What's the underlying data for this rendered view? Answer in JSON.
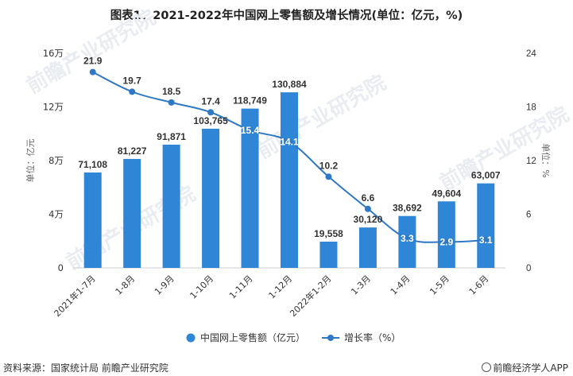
{
  "title": "图表1：2021-2022年中国网上零售额及增长情况(单位：亿元，%)",
  "source": "资料来源：国家统计局 前瞻产业研究院",
  "brand": "前瞻经济学人APP",
  "watermark": "前瞻产业研究院",
  "colors": {
    "bar": "#2f86d6",
    "line": "#2f78c4",
    "text": "#333333",
    "axis": "#cccccc"
  },
  "chart_data": {
    "type": "bar",
    "categories": [
      "2021年1-7月",
      "1-8月",
      "1-9月",
      "1-10月",
      "1-11月",
      "1-12月",
      "2022年1-2月",
      "1-3月",
      "1-4月",
      "1-5月",
      "1-6月"
    ],
    "series": [
      {
        "name": "中国网上零售额（亿元）",
        "type": "bar",
        "axis": "left",
        "values": [
          71108,
          81227,
          91871,
          103765,
          118749,
          130884,
          19558,
          30120,
          38692,
          49604,
          63007
        ],
        "labels": [
          "71,108",
          "81,227",
          "91,871",
          "103,765",
          "118,749",
          "130,884",
          "19,558",
          "30,120",
          "38,692",
          "49,604",
          "63,007"
        ]
      },
      {
        "name": "增长率（%）",
        "type": "line",
        "axis": "right",
        "values": [
          21.9,
          19.7,
          18.5,
          17.4,
          15.4,
          14.1,
          10.2,
          6.6,
          3.3,
          2.9,
          3.1
        ]
      }
    ],
    "ylabel_left": "单位：亿元",
    "ylabel_right": "单位：%",
    "ylim_left": [
      0,
      160000
    ],
    "ylim_right": [
      0,
      24
    ],
    "yticks_left": [
      {
        "value": 0,
        "label": "0"
      },
      {
        "value": 40000,
        "label": "4万"
      },
      {
        "value": 80000,
        "label": "8万"
      },
      {
        "value": 120000,
        "label": "12万"
      },
      {
        "value": 160000,
        "label": "16万"
      }
    ],
    "yticks_right": [
      {
        "value": 0,
        "label": "0"
      },
      {
        "value": 6,
        "label": "6"
      },
      {
        "value": 12,
        "label": "12"
      },
      {
        "value": 18,
        "label": "18"
      },
      {
        "value": 24,
        "label": "24"
      }
    ],
    "legend": [
      {
        "label": "中国网上零售额（亿元）",
        "kind": "bar"
      },
      {
        "label": "增长率（%）",
        "kind": "line"
      }
    ],
    "legend_position": "bottom"
  }
}
